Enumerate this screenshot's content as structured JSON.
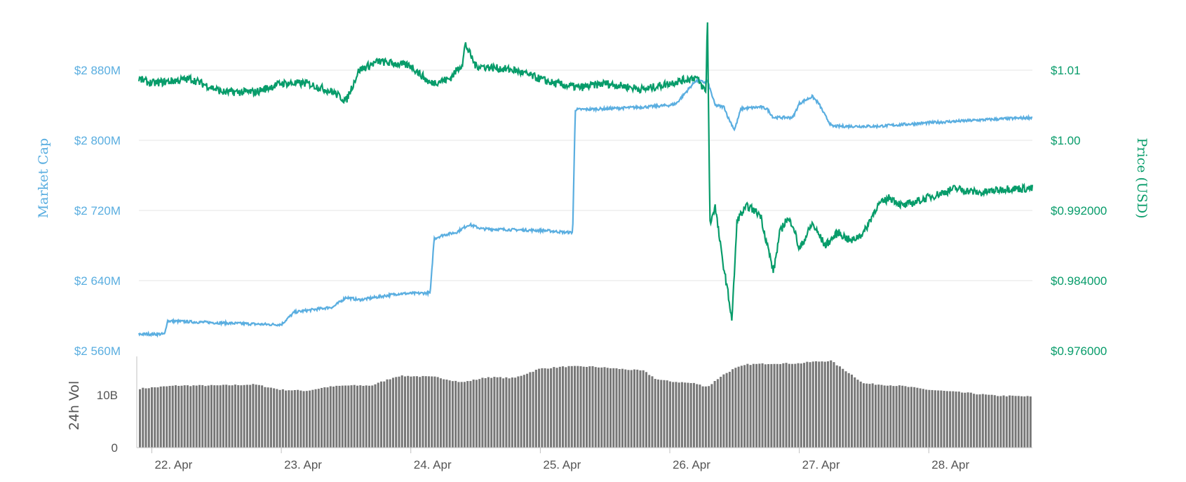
{
  "chart_data": {
    "type": "line",
    "x_labels": [
      "22. Apr",
      "23. Apr",
      "24. Apr",
      "25. Apr",
      "26. Apr",
      "27. Apr",
      "28. Apr"
    ],
    "x_range_days": [
      21.9,
      28.8
    ],
    "left_axis": {
      "label": "Market Cap",
      "ticks": [
        {
          "value": 2560,
          "label": "$2 560M"
        },
        {
          "value": 2640,
          "label": "$2 640M"
        },
        {
          "value": 2720,
          "label": "$2 720M"
        },
        {
          "value": 2800,
          "label": "$2 800M"
        },
        {
          "value": 2880,
          "label": "$2 880M"
        }
      ],
      "range": [
        2560,
        2880
      ]
    },
    "right_axis": {
      "label": "Price (USD)",
      "ticks": [
        {
          "value": 0.976,
          "label": "$0.976000"
        },
        {
          "value": 0.984,
          "label": "$0.984000"
        },
        {
          "value": 0.992,
          "label": "$0.992000"
        },
        {
          "value": 1.0,
          "label": "$1.00"
        },
        {
          "value": 1.008,
          "label": "$1.01"
        }
      ],
      "range": [
        0.976,
        1.008
      ]
    },
    "volume_axis": {
      "label": "24h Vol",
      "ticks": [
        {
          "value": 0,
          "label": "0"
        },
        {
          "value": 10,
          "label": "10B"
        }
      ],
      "range": [
        0,
        16
      ]
    },
    "series": [
      {
        "name": "Market Cap",
        "color": "#5aaee0",
        "x": [
          21.9,
          22.1,
          22.12,
          22.5,
          22.9,
          23.0,
          23.1,
          23.25,
          23.4,
          23.5,
          23.6,
          23.9,
          24.15,
          24.18,
          24.25,
          24.35,
          24.45,
          24.55,
          24.8,
          25.05,
          25.2,
          25.25,
          25.27,
          25.5,
          25.8,
          26.0,
          26.05,
          26.2,
          26.28,
          26.29,
          26.35,
          26.42,
          26.45,
          26.5,
          26.55,
          26.7,
          26.75,
          26.8,
          26.95,
          27.0,
          27.1,
          27.15,
          27.2,
          27.25,
          27.3,
          27.6,
          28.0,
          28.5,
          28.8
        ],
        "values": [
          2579,
          2579,
          2594,
          2592,
          2590,
          2590,
          2604,
          2607,
          2610,
          2621,
          2618,
          2625,
          2626,
          2688,
          2692,
          2695,
          2704,
          2699,
          2698,
          2697,
          2695,
          2695,
          2835,
          2836,
          2838,
          2840,
          2842,
          2868,
          2866,
          2868,
          2840,
          2838,
          2826,
          2812,
          2836,
          2838,
          2836,
          2826,
          2826,
          2842,
          2850,
          2842,
          2828,
          2816,
          2816,
          2816,
          2820,
          2824,
          2826
        ]
      },
      {
        "name": "Price",
        "color": "#079c6a",
        "x": [
          21.9,
          22.0,
          22.3,
          22.55,
          22.8,
          23.0,
          23.2,
          23.4,
          23.5,
          23.6,
          23.75,
          24.0,
          24.15,
          24.3,
          24.4,
          24.42,
          24.5,
          24.8,
          25.0,
          25.1,
          25.3,
          25.5,
          25.8,
          26.0,
          26.2,
          26.28,
          26.29,
          26.31,
          26.35,
          26.4,
          26.45,
          26.48,
          26.52,
          26.6,
          26.7,
          26.8,
          26.85,
          26.9,
          26.95,
          27.0,
          27.1,
          27.2,
          27.3,
          27.4,
          27.5,
          27.6,
          27.7,
          27.75,
          27.8,
          28.0,
          28.2,
          28.4,
          28.6,
          28.8
        ],
        "values": [
          1.007,
          1.0065,
          1.007,
          1.0055,
          1.0055,
          1.0065,
          1.0065,
          1.0055,
          1.0045,
          1.008,
          1.009,
          1.0085,
          1.0065,
          1.007,
          1.0088,
          1.011,
          1.0085,
          1.008,
          1.007,
          1.0065,
          1.006,
          1.0065,
          1.0058,
          1.0065,
          1.0072,
          1.0055,
          1.015,
          0.9905,
          0.9925,
          0.987,
          0.9825,
          0.9795,
          0.991,
          0.9925,
          0.9915,
          0.985,
          0.9895,
          0.991,
          0.9905,
          0.9875,
          0.9905,
          0.988,
          0.9895,
          0.9885,
          0.9895,
          0.9925,
          0.9935,
          0.993,
          0.9925,
          0.9935,
          0.9945,
          0.994,
          0.9945,
          0.9945
        ]
      },
      {
        "name": "24h Vol",
        "color": "#777777",
        "x": [
          21.9,
          22.2,
          22.5,
          22.8,
          23.0,
          23.2,
          23.35,
          23.5,
          23.7,
          23.9,
          24.0,
          24.2,
          24.4,
          24.6,
          24.8,
          25.0,
          25.2,
          25.4,
          25.6,
          25.8,
          25.9,
          26.0,
          26.1,
          26.2,
          26.25,
          26.3,
          26.4,
          26.5,
          26.6,
          26.8,
          27.0,
          27.1,
          27.25,
          27.3,
          27.4,
          27.5,
          27.8,
          28.0,
          28.3,
          28.5,
          28.8
        ],
        "values": [
          11.2,
          11.8,
          11.8,
          12.0,
          11.0,
          10.8,
          11.5,
          11.8,
          11.8,
          13.6,
          13.6,
          13.4,
          12.4,
          13.4,
          13.2,
          15.0,
          15.4,
          15.4,
          15.0,
          14.6,
          13.0,
          12.6,
          12.4,
          12.2,
          11.8,
          11.6,
          13.6,
          15.0,
          15.8,
          16.0,
          16.0,
          16.3,
          16.5,
          15.6,
          14.0,
          12.2,
          11.7,
          11.0,
          10.4,
          9.9,
          9.7
        ]
      }
    ]
  }
}
